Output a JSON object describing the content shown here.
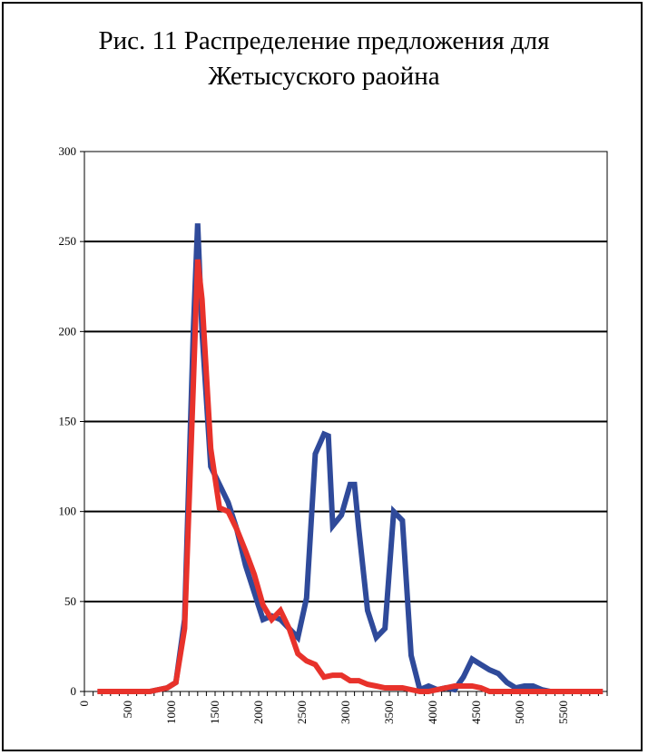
{
  "title_line1": "Рис. 11 Распределение предложения для",
  "title_line2": "Жетысуского раойна",
  "chart_data": {
    "type": "line",
    "title": "Рис. 11 Распределение предложения для Жетысуского раойна",
    "xlabel": "",
    "ylabel": "",
    "xlim": [
      0,
      6000
    ],
    "ylim": [
      0,
      300
    ],
    "grid": true,
    "x_ticks": [
      "0",
      "500",
      "1000",
      "1500",
      "2000",
      "2500",
      "3000",
      "3500",
      "4000",
      "4500",
      "5000",
      "5500"
    ],
    "y_ticks": [
      "0",
      "50",
      "100",
      "150",
      "200",
      "250",
      "300"
    ],
    "series": [
      {
        "color": "#2f4a9a",
        "x": [
          150,
          250,
          350,
          450,
          550,
          650,
          750,
          850,
          950,
          1050,
          1150,
          1250,
          1300,
          1350,
          1450,
          1550,
          1650,
          1750,
          1850,
          1950,
          2050,
          2150,
          2250,
          2350,
          2450,
          2550,
          2650,
          2750,
          2800,
          2850,
          2950,
          3050,
          3100,
          3150,
          3250,
          3350,
          3450,
          3550,
          3650,
          3750,
          3850,
          3950,
          4050,
          4150,
          4250,
          4350,
          4450,
          4550,
          4650,
          4750,
          4850,
          4950,
          5050,
          5150,
          5250,
          5350,
          5450,
          5550,
          5650,
          5750,
          5850,
          5950
        ],
        "y": [
          0,
          0,
          0,
          0,
          0,
          0,
          0,
          1,
          2,
          5,
          40,
          200,
          260,
          200,
          125,
          115,
          105,
          90,
          70,
          55,
          40,
          42,
          40,
          35,
          30,
          52,
          132,
          143,
          142,
          92,
          98,
          115,
          115,
          90,
          45,
          30,
          35,
          100,
          95,
          20,
          1,
          3,
          1,
          2,
          1,
          8,
          18,
          15,
          12,
          10,
          5,
          2,
          3,
          3,
          1,
          0,
          0,
          0,
          0,
          0,
          0,
          0
        ]
      },
      {
        "color": "#e8322b",
        "x": [
          150,
          250,
          350,
          450,
          550,
          650,
          750,
          850,
          950,
          1050,
          1150,
          1250,
          1300,
          1350,
          1450,
          1550,
          1650,
          1750,
          1850,
          1950,
          2050,
          2150,
          2250,
          2350,
          2450,
          2550,
          2650,
          2750,
          2850,
          2950,
          3050,
          3150,
          3250,
          3350,
          3450,
          3550,
          3650,
          3750,
          3850,
          3950,
          4050,
          4150,
          4250,
          4350,
          4450,
          4550,
          4650,
          4750,
          4850,
          4950,
          5050,
          5150,
          5250,
          5350,
          5450,
          5550,
          5650,
          5750,
          5850,
          5950
        ],
        "y": [
          0,
          0,
          0,
          0,
          0,
          0,
          0,
          1,
          2,
          5,
          35,
          170,
          240,
          218,
          135,
          102,
          100,
          90,
          78,
          65,
          48,
          40,
          45,
          35,
          21,
          17,
          15,
          8,
          9,
          9,
          6,
          6,
          4,
          3,
          2,
          2,
          2,
          1,
          0,
          0,
          1,
          2,
          3,
          3,
          3,
          2,
          0,
          0,
          0,
          0,
          0,
          0,
          0,
          0,
          0,
          0,
          0,
          0,
          0,
          0
        ]
      }
    ]
  }
}
